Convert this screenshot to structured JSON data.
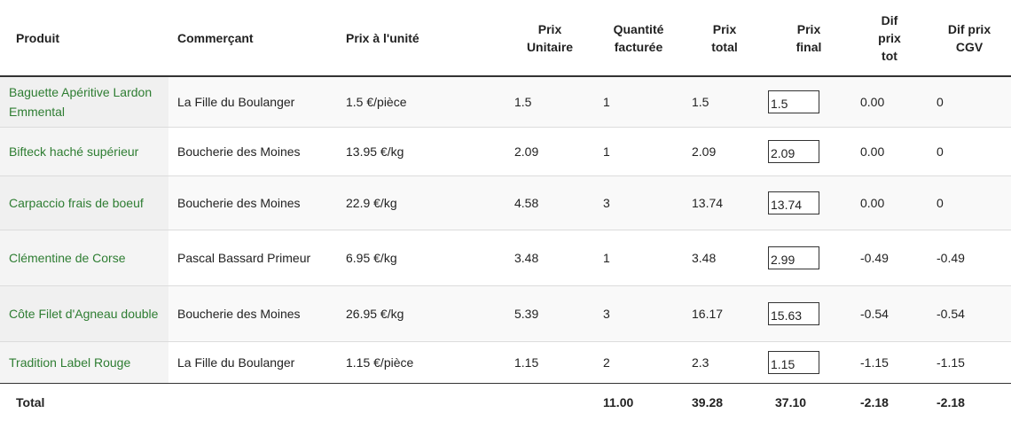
{
  "headers": {
    "produit": "Produit",
    "commercant": "Commerçant",
    "prix_unite": "Prix à l'unité",
    "prix_unitaire": [
      "Prix",
      "Unitaire"
    ],
    "quantite": [
      "Quantité",
      "facturée"
    ],
    "prix_total": [
      "Prix",
      "total"
    ],
    "prix_final": [
      "Prix",
      "final"
    ],
    "dif_prix_tot": [
      "Dif",
      "prix",
      "tot"
    ],
    "dif_prix_cgv": [
      "Dif prix",
      "CGV"
    ]
  },
  "rows": [
    {
      "produit": "Baguette Apéritive Lardon Emmental",
      "commercant": "La Fille du Boulanger",
      "prix_unite": "1.5 €/pièce",
      "prix_unitaire": "1.5",
      "quantite": "1",
      "prix_total": "1.5",
      "prix_final": "1.5",
      "dif_tot": "0.00",
      "dif_cgv": "0"
    },
    {
      "produit": "Bifteck haché supérieur",
      "commercant": "Boucherie des Moines",
      "prix_unite": "13.95 €/kg",
      "prix_unitaire": "2.09",
      "quantite": "1",
      "prix_total": "2.09",
      "prix_final": "2.09",
      "dif_tot": "0.00",
      "dif_cgv": "0"
    },
    {
      "produit": "Carpaccio frais de boeuf",
      "commercant": "Boucherie des Moines",
      "prix_unite": "22.9 €/kg",
      "prix_unitaire": "4.58",
      "quantite": "3",
      "prix_total": "13.74",
      "prix_final": "13.74",
      "dif_tot": "0.00",
      "dif_cgv": "0"
    },
    {
      "produit": "Clémentine de Corse",
      "commercant": "Pascal Bassard Primeur",
      "prix_unite": "6.95 €/kg",
      "prix_unitaire": "3.48",
      "quantite": "1",
      "prix_total": "3.48",
      "prix_final": "2.99",
      "dif_tot": "-0.49",
      "dif_cgv": "-0.49"
    },
    {
      "produit": "Côte Filet d'Agneau double",
      "commercant": "Boucherie des Moines",
      "prix_unite": "26.95 €/kg",
      "prix_unitaire": "5.39",
      "quantite": "3",
      "prix_total": "16.17",
      "prix_final": "15.63",
      "dif_tot": "-0.54",
      "dif_cgv": "-0.54"
    },
    {
      "produit": "Tradition Label Rouge",
      "commercant": "La Fille du Boulanger",
      "prix_unite": "1.15 €/pièce",
      "prix_unitaire": "1.15",
      "quantite": "2",
      "prix_total": "2.3",
      "prix_final": "1.15",
      "dif_tot": "-1.15",
      "dif_cgv": "-1.15"
    }
  ],
  "total": {
    "label": "Total",
    "quantite": "11.00",
    "prix_total": "39.28",
    "prix_final": "37.10",
    "dif_tot": "-2.18",
    "dif_cgv": "-2.18"
  },
  "colors": {
    "product_link": "#2e7d32",
    "row_stripe": "#f9f9f9",
    "border_dark": "#333333"
  }
}
